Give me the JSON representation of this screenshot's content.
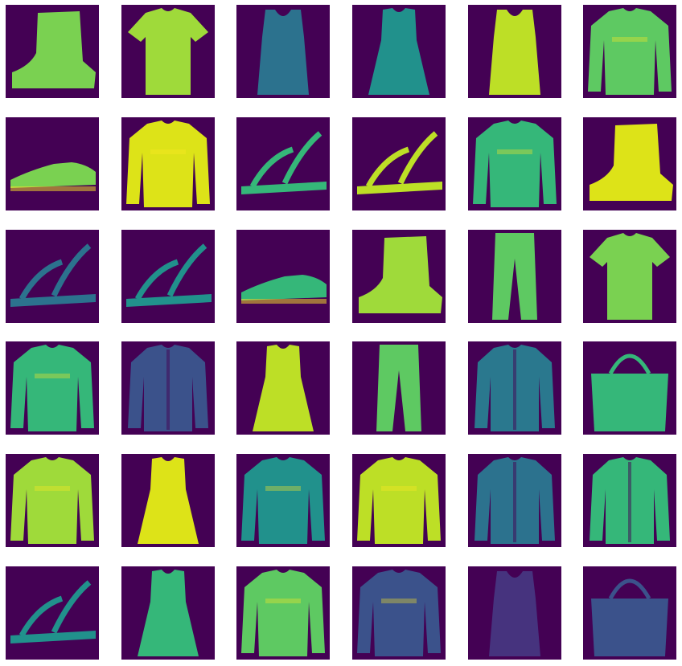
{
  "figure": {
    "colormap": "viridis",
    "background_color": "#440154",
    "grid_rows": 6,
    "grid_cols": 6,
    "axes_visible": false
  },
  "images": [
    {
      "item": "ankle-boot",
      "tone": "#7ad151"
    },
    {
      "item": "t-shirt",
      "tone": "#9fda3a"
    },
    {
      "item": "tank-top",
      "tone": "#2c728e"
    },
    {
      "item": "dress",
      "tone": "#21918c"
    },
    {
      "item": "top",
      "tone": "#bddf26"
    },
    {
      "item": "pullover",
      "tone": "#5ec962"
    },
    {
      "item": "sneaker",
      "tone": "#7ad151"
    },
    {
      "item": "pullover",
      "tone": "#dde318"
    },
    {
      "item": "sandal",
      "tone": "#35b779"
    },
    {
      "item": "sandal",
      "tone": "#bddf26"
    },
    {
      "item": "shirt",
      "tone": "#35b779"
    },
    {
      "item": "ankle-boot",
      "tone": "#dde318"
    },
    {
      "item": "sandal",
      "tone": "#2c728e"
    },
    {
      "item": "sandal",
      "tone": "#21918c"
    },
    {
      "item": "sneaker",
      "tone": "#35b779"
    },
    {
      "item": "ankle-boot",
      "tone": "#9fda3a"
    },
    {
      "item": "trouser",
      "tone": "#5ec962"
    },
    {
      "item": "t-shirt",
      "tone": "#7ad151"
    },
    {
      "item": "pullover",
      "tone": "#35b779"
    },
    {
      "item": "coat",
      "tone": "#3b528b"
    },
    {
      "item": "dress",
      "tone": "#bddf26"
    },
    {
      "item": "trouser",
      "tone": "#5ec962"
    },
    {
      "item": "coat",
      "tone": "#2a788e"
    },
    {
      "item": "bag",
      "tone": "#35b779"
    },
    {
      "item": "pullover",
      "tone": "#9fda3a"
    },
    {
      "item": "dress",
      "tone": "#dde318"
    },
    {
      "item": "shirt",
      "tone": "#21918c"
    },
    {
      "item": "pullover",
      "tone": "#bddf26"
    },
    {
      "item": "coat",
      "tone": "#2c728e"
    },
    {
      "item": "coat",
      "tone": "#35b779"
    },
    {
      "item": "sandal",
      "tone": "#21918c"
    },
    {
      "item": "dress",
      "tone": "#35b779"
    },
    {
      "item": "shirt",
      "tone": "#5ec962"
    },
    {
      "item": "shirt",
      "tone": "#3b528b"
    },
    {
      "item": "top",
      "tone": "#46337e"
    },
    {
      "item": "bag",
      "tone": "#3b528b"
    }
  ]
}
